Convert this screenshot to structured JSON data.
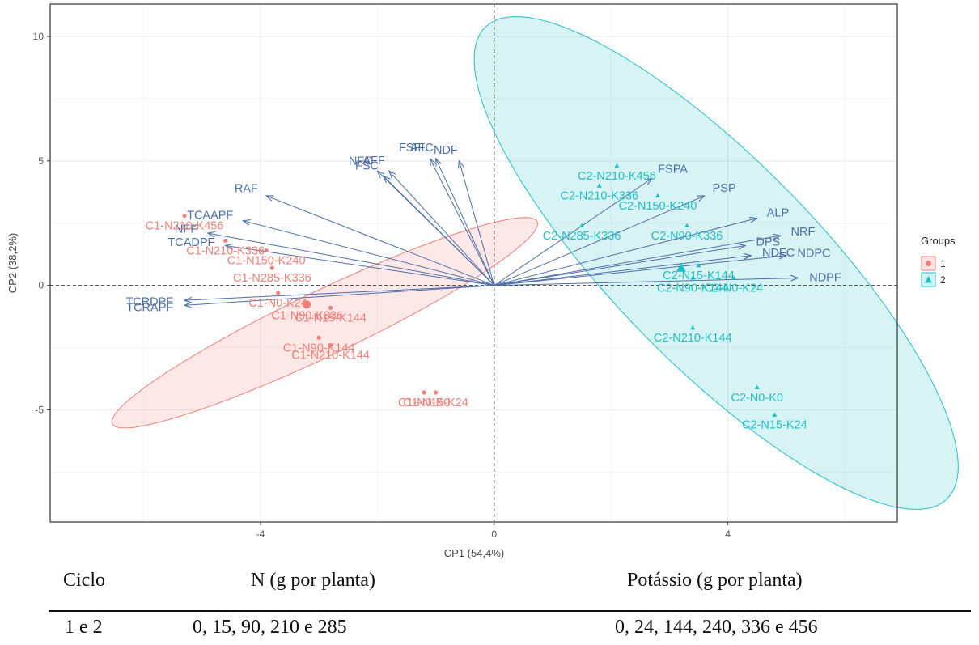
{
  "chart_data": {
    "type": "scatter",
    "xlabel": "CP1 (54,4%)",
    "ylabel": "CP2 (38,2%)",
    "xlim": [
      -7.6,
      6.9
    ],
    "ylim": [
      -9.5,
      11.3
    ],
    "x_ticks": [
      -4,
      0,
      4
    ],
    "y_ticks": [
      -5,
      0,
      5,
      10
    ],
    "grid": true,
    "legend": {
      "title": "Groups",
      "placement": "right",
      "entries": [
        "1",
        "2"
      ]
    },
    "colors": {
      "group1": "#f07f78",
      "group2": "#1fbfc4",
      "variables": "#4d6fa8"
    },
    "groups": [
      {
        "name": "1",
        "points": [
          {
            "label": "C1-N210-K456",
            "x": -5.3,
            "y": 2.8
          },
          {
            "label": "C1-N210-K336",
            "x": -4.6,
            "y": 1.8
          },
          {
            "label": "C1-N150-K240",
            "x": -3.9,
            "y": 1.4
          },
          {
            "label": "C1-N285-K336",
            "x": -3.8,
            "y": 0.7
          },
          {
            "label": "C1-N0-K24",
            "x": -3.7,
            "y": -0.3
          },
          {
            "label": "C1-N90-K336",
            "x": -3.2,
            "y": -0.8
          },
          {
            "label": "C1-N15-K144",
            "x": -2.8,
            "y": -0.9
          },
          {
            "label": "C1-N90-K144",
            "x": -3.0,
            "y": -2.1
          },
          {
            "label": "C1-N210-K144",
            "x": -2.8,
            "y": -2.4
          },
          {
            "label": "C1-N0-K0",
            "x": -1.2,
            "y": -4.3
          },
          {
            "label": "C1-N15-K24",
            "x": -1.0,
            "y": -4.3
          }
        ]
      },
      {
        "name": "2",
        "points": [
          {
            "label": "C2-N210-K456",
            "x": 2.1,
            "y": 4.8
          },
          {
            "label": "C2-N150-K240",
            "x": 2.8,
            "y": 3.6
          },
          {
            "label": "C2-N210-K336",
            "x": 1.8,
            "y": 4.0
          },
          {
            "label": "C2-N285-K336",
            "x": 1.5,
            "y": 2.4
          },
          {
            "label": "C2-N90-K336",
            "x": 3.3,
            "y": 2.4
          },
          {
            "label": "C2-N15-K144",
            "x": 3.5,
            "y": 0.8
          },
          {
            "label": "C2-N90-K144",
            "x": 3.4,
            "y": 0.3
          },
          {
            "label": "C2-N0-K24",
            "x": 4.1,
            "y": 0.3
          },
          {
            "label": "C2-N210-K144",
            "x": 3.4,
            "y": -1.7
          },
          {
            "label": "C2-N0-K0",
            "x": 4.5,
            "y": -4.1
          },
          {
            "label": "C2-N15-K24",
            "x": 4.8,
            "y": -5.2
          }
        ]
      }
    ],
    "variables": [
      {
        "name": "NFC",
        "x": -2.0,
        "y": 4.6
      },
      {
        "name": "AFC",
        "x": -1.0,
        "y": 5.1
      },
      {
        "name": "NDF",
        "x": -0.6,
        "y": 5.0
      },
      {
        "name": "AFF",
        "x": -1.8,
        "y": 4.6
      },
      {
        "name": "FSFL",
        "x": -1.1,
        "y": 5.1
      },
      {
        "name": "FSC",
        "x": -1.9,
        "y": 4.4
      },
      {
        "name": "RAF",
        "x": -3.9,
        "y": 3.6
      },
      {
        "name": "TCAAPF",
        "x": -4.3,
        "y": 2.6
      },
      {
        "name": "NFF",
        "x": -4.9,
        "y": 2.1
      },
      {
        "name": "TCADPF",
        "x": -4.6,
        "y": 1.6
      },
      {
        "name": "TCRDPF",
        "x": -5.3,
        "y": -0.6
      },
      {
        "name": "TCRAPF",
        "x": -5.3,
        "y": -0.8
      },
      {
        "name": "FSPA",
        "x": 2.7,
        "y": 4.3
      },
      {
        "name": "PSP",
        "x": 3.6,
        "y": 3.6
      },
      {
        "name": "ALP",
        "x": 4.5,
        "y": 2.7
      },
      {
        "name": "NRF",
        "x": 4.9,
        "y": 2.0
      },
      {
        "name": "DPS",
        "x": 4.3,
        "y": 1.6
      },
      {
        "name": "NDFC",
        "x": 4.4,
        "y": 1.2
      },
      {
        "name": "NDPC",
        "x": 5.0,
        "y": 1.2
      },
      {
        "name": "NDPF",
        "x": 5.2,
        "y": 0.3
      }
    ],
    "ellipses": [
      {
        "group": "1",
        "cx": -2.9,
        "cy": -1.5,
        "rx": 5.5,
        "ry": 0.95,
        "angle_deg": 49.5
      },
      {
        "group": "2",
        "cx": 3.8,
        "cy": 0.9,
        "rx": 10.5,
        "ry": 2.2,
        "angle_deg": 110
      }
    ]
  },
  "table": {
    "headers": [
      "Ciclo",
      "N (g por planta)",
      "Potássio (g por planta)"
    ],
    "row": [
      "1 e 2",
      "0, 15, 90, 210 e 285",
      "0, 24, 144, 240, 336 e 456"
    ]
  }
}
